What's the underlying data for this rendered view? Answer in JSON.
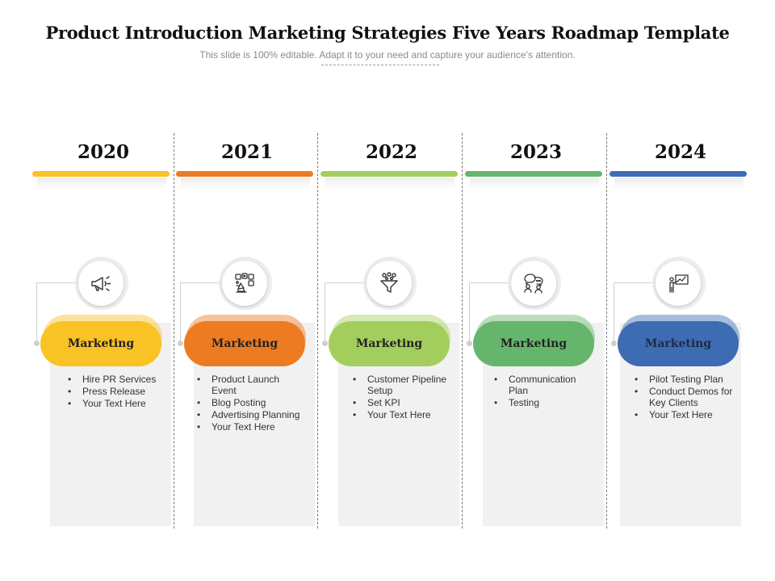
{
  "header": {
    "title": "Product Introduction Marketing Strategies Five Years Roadmap Template",
    "subtitle": "This slide is 100% editable. Adapt it to your need and capture your audience’s attention."
  },
  "columns": [
    {
      "year": "2020",
      "label": "Marketing",
      "icon": "megaphone-icon",
      "color": "#F9C225",
      "items": [
        "Hire PR Services",
        "Press Release",
        "Your Text Here"
      ]
    },
    {
      "year": "2021",
      "label": "Marketing",
      "icon": "media-marketing-icon",
      "color": "#EC7B22",
      "items": [
        "Product Launch Event",
        "Blog Posting",
        "Advertising Planning",
        "Your Text Here"
      ]
    },
    {
      "year": "2022",
      "label": "Marketing",
      "icon": "funnel-icon",
      "color": "#A3CE5E",
      "items": [
        "Customer Pipeline Setup",
        "Set KPI",
        "Your Text Here"
      ]
    },
    {
      "year": "2023",
      "label": "Marketing",
      "icon": "conversation-icon",
      "color": "#66B56C",
      "items": [
        "Communication Plan",
        "Testing"
      ]
    },
    {
      "year": "2024",
      "label": "Marketing",
      "icon": "presentation-icon",
      "color": "#3D6CB3",
      "items": [
        "Pilot Testing Plan",
        "Conduct Demos for Key Clients",
        "Your Text Here"
      ]
    }
  ]
}
